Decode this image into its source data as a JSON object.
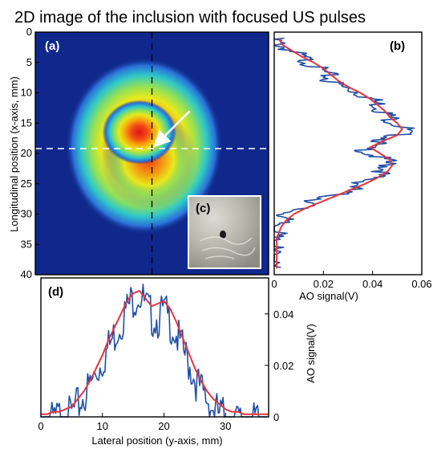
{
  "figure": {
    "title": "2D image of the inclusion with focused US pulses"
  },
  "chart_data": [
    {
      "panel": "(a)",
      "type": "heatmap",
      "ylabel": "Longitudinal position (x-axis, mm)",
      "ylim": [
        0,
        40
      ],
      "yticks": [
        "0",
        "5",
        "10",
        "15",
        "20",
        "25",
        "30",
        "35",
        "40"
      ],
      "xlim": [
        0,
        37
      ],
      "colormap": "jet",
      "spots": [
        {
          "x": 16.5,
          "y": 16.5,
          "amplitude": 0.051
        },
        {
          "x": 18.0,
          "y": 21.0,
          "amplitude": 0.046
        }
      ],
      "crosshair": {
        "x": 18.5,
        "y": 19.2
      },
      "arrow": {
        "from": [
          24.5,
          13.0
        ],
        "to": [
          19.2,
          18.5
        ]
      },
      "colors": {
        "background": "#10288c",
        "vertical_line": "#000000",
        "horizontal_line": "#ffffff",
        "arrow": "#ffffff"
      }
    },
    {
      "panel": "(b)",
      "type": "line",
      "xlabel": "AO signal(V)",
      "xlim": [
        0,
        0.06
      ],
      "xticks": [
        "0",
        "0.02",
        "0.04",
        "0.06"
      ],
      "ylim": [
        0,
        40
      ],
      "series": [
        {
          "role": "measured",
          "color": "#1f4fa8",
          "y": [
            1,
            2,
            3,
            4,
            5,
            6,
            7,
            8,
            9,
            10,
            11,
            12,
            13,
            14,
            15,
            16,
            17,
            18,
            19,
            20,
            21,
            22,
            23,
            24,
            25,
            26,
            27,
            28,
            29,
            30,
            31,
            32,
            33,
            34,
            35,
            36,
            37,
            38,
            39
          ],
          "values": [
            0.002,
            0.004,
            0.009,
            0.013,
            0.017,
            0.02,
            0.024,
            0.025,
            0.03,
            0.037,
            0.042,
            0.045,
            0.047,
            0.049,
            0.052,
            0.056,
            0.053,
            0.046,
            0.039,
            0.041,
            0.047,
            0.049,
            0.047,
            0.042,
            0.038,
            0.033,
            0.026,
            0.018,
            0.013,
            0.008,
            0.005,
            0.004,
            0.003,
            0.002,
            0.002,
            0.001,
            0.001,
            0.001,
            0.001
          ]
        },
        {
          "role": "fit",
          "color": "#e8343c",
          "y": [
            1,
            2,
            3,
            4,
            5,
            6,
            7,
            8,
            9,
            10,
            11,
            12,
            13,
            14,
            15,
            16,
            17,
            18,
            19,
            20,
            21,
            22,
            23,
            24,
            25,
            26,
            27,
            28,
            29,
            30,
            31,
            32,
            33,
            34,
            35,
            36,
            37,
            38,
            39
          ],
          "values": [
            0.002,
            0.003,
            0.007,
            0.011,
            0.016,
            0.02,
            0.023,
            0.026,
            0.03,
            0.035,
            0.039,
            0.042,
            0.045,
            0.047,
            0.05,
            0.052,
            0.05,
            0.044,
            0.039,
            0.043,
            0.047,
            0.048,
            0.046,
            0.042,
            0.037,
            0.031,
            0.025,
            0.019,
            0.013,
            0.008,
            0.005,
            0.003,
            0.002,
            0.001,
            0.001,
            0.001,
            0.001,
            0.001,
            0.001
          ]
        }
      ]
    },
    {
      "panel": "(c)",
      "type": "other",
      "description_visible": "photograph inset"
    },
    {
      "panel": "(d)",
      "type": "line",
      "xlabel": "Lateral position (y-axis, mm)",
      "xlim": [
        0,
        37
      ],
      "xticks": [
        "0",
        "10",
        "20",
        "30"
      ],
      "ylabel": "AO signal(V)",
      "ylim": [
        0,
        0.054
      ],
      "yticks": [
        "0",
        "0.02",
        "0.04"
      ],
      "series": [
        {
          "role": "measured",
          "color": "#1f4fa8",
          "x": [
            0,
            1,
            2,
            3,
            4,
            5,
            6,
            7,
            8,
            9,
            10,
            11,
            12,
            13,
            14,
            15,
            16,
            17,
            18,
            19,
            20,
            21,
            22,
            23,
            24,
            25,
            26,
            27,
            28,
            29,
            30,
            31,
            32,
            33,
            34,
            35,
            36,
            37
          ],
          "values": [
            0.001,
            0.003,
            0.002,
            0.004,
            0.003,
            0.005,
            0.008,
            0.012,
            0.016,
            0.021,
            0.026,
            0.031,
            0.036,
            0.041,
            0.046,
            0.05,
            0.052,
            0.047,
            0.043,
            0.042,
            0.045,
            0.041,
            0.036,
            0.03,
            0.025,
            0.019,
            0.014,
            0.011,
            0.007,
            0.005,
            0.004,
            0.003,
            0.002,
            0.002,
            0.001,
            0.002,
            0.001,
            0.001
          ]
        },
        {
          "role": "fit",
          "color": "#e8343c",
          "x": [
            0,
            1,
            2,
            3,
            4,
            5,
            6,
            7,
            8,
            9,
            10,
            11,
            12,
            13,
            14,
            15,
            16,
            17,
            18,
            19,
            20,
            21,
            22,
            23,
            24,
            25,
            26,
            27,
            28,
            29,
            30,
            31,
            32,
            33,
            34,
            35,
            36,
            37
          ],
          "values": [
            0.001,
            0.001,
            0.002,
            0.002,
            0.003,
            0.004,
            0.007,
            0.01,
            0.014,
            0.019,
            0.024,
            0.03,
            0.035,
            0.04,
            0.045,
            0.048,
            0.049,
            0.046,
            0.043,
            0.044,
            0.045,
            0.042,
            0.037,
            0.031,
            0.025,
            0.019,
            0.014,
            0.01,
            0.007,
            0.005,
            0.003,
            0.002,
            0.002,
            0.001,
            0.001,
            0.001,
            0.001,
            0.001
          ]
        }
      ]
    }
  ]
}
